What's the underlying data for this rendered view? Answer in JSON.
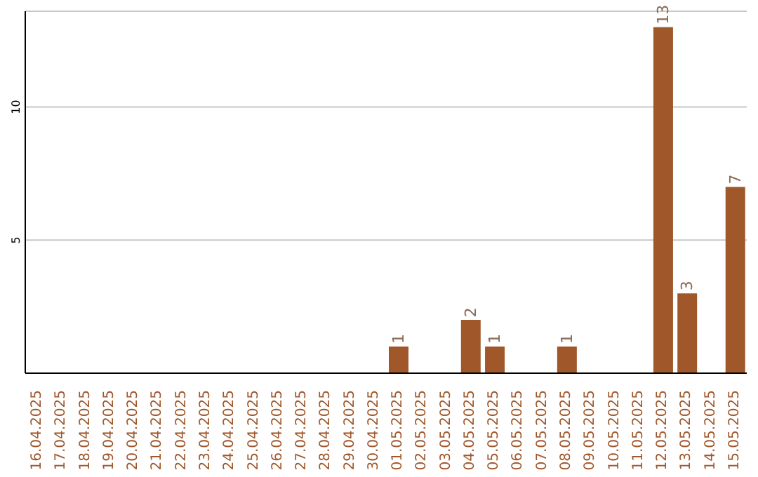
{
  "chart_data": {
    "type": "bar",
    "categories": [
      "16.04.2025",
      "17.04.2025",
      "18.04.2025",
      "19.04.2025",
      "20.04.2025",
      "21.04.2025",
      "22.04.2025",
      "23.04.2025",
      "24.04.2025",
      "25.04.2025",
      "26.04.2025",
      "27.04.2025",
      "28.04.2025",
      "29.04.2025",
      "30.04.2025",
      "01.05.2025",
      "02.05.2025",
      "03.05.2025",
      "04.05.2025",
      "05.05.2025",
      "06.05.2025",
      "07.05.2025",
      "08.05.2025",
      "09.05.2025",
      "10.05.2025",
      "11.05.2025",
      "12.05.2025",
      "13.05.2025",
      "14.05.2025",
      "15.05.2025"
    ],
    "values": [
      0,
      0,
      0,
      0,
      0,
      0,
      0,
      0,
      0,
      0,
      0,
      0,
      0,
      0,
      0,
      1,
      0,
      0,
      2,
      1,
      0,
      0,
      1,
      0,
      0,
      0,
      13,
      3,
      0,
      7
    ],
    "value_labels": [
      null,
      null,
      null,
      null,
      null,
      null,
      null,
      null,
      null,
      null,
      null,
      null,
      null,
      null,
      null,
      "1",
      null,
      null,
      "2",
      "1",
      null,
      null,
      "1",
      null,
      null,
      null,
      "13",
      "3",
      null,
      "7"
    ],
    "color": "#a0572a",
    "ylim": [
      0,
      13.6
    ],
    "yticks": [
      5,
      10
    ],
    "grid": "y"
  }
}
